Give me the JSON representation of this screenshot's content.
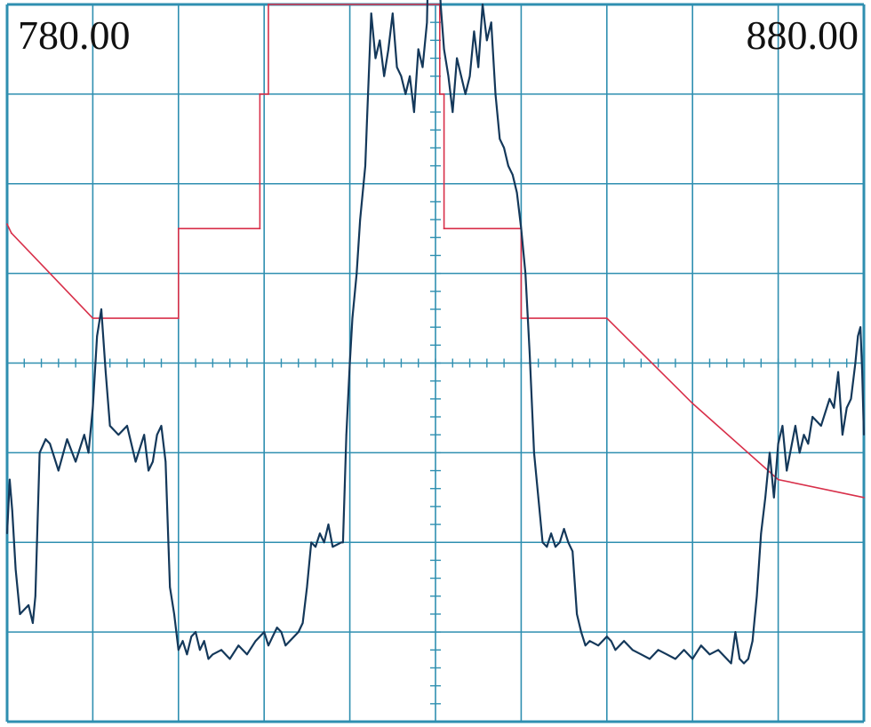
{
  "chart_data": {
    "type": "line",
    "start_label": "780.00",
    "stop_label": "880.00",
    "x_range": [
      780,
      880
    ],
    "y_divisions": 8,
    "x_divisions": 10,
    "grid": true,
    "colors": {
      "grid": "#2f8fb0",
      "trace": "#14385a",
      "mask": "#d8304a",
      "background": "#ffffff"
    },
    "series": [
      {
        "role": "mask",
        "points": [
          [
            780.0,
            5.55
          ],
          [
            780.5,
            5.45
          ],
          [
            785,
            5.0
          ],
          [
            790,
            4.5
          ],
          [
            800,
            4.5
          ],
          [
            800,
            5.5
          ],
          [
            809.5,
            5.5
          ],
          [
            809.5,
            7.0
          ],
          [
            810.5,
            7.0
          ],
          [
            810.5,
            8.0
          ],
          [
            830.5,
            8.0
          ],
          [
            830.5,
            7.0
          ],
          [
            831,
            7.0
          ],
          [
            831,
            5.5
          ],
          [
            840,
            5.5
          ],
          [
            840,
            4.5
          ],
          [
            850,
            4.5
          ],
          [
            860,
            3.55
          ],
          [
            870,
            2.7
          ],
          [
            880,
            2.5
          ]
        ]
      },
      {
        "role": "trace",
        "points": [
          [
            780.0,
            2.1
          ],
          [
            780.3,
            2.7
          ],
          [
            780.6,
            2.35
          ],
          [
            781,
            1.7
          ],
          [
            781.5,
            1.2
          ],
          [
            782,
            1.25
          ],
          [
            782.5,
            1.3
          ],
          [
            783,
            1.1
          ],
          [
            783.3,
            1.4
          ],
          [
            783.8,
            3.0
          ],
          [
            784.5,
            3.15
          ],
          [
            785,
            3.1
          ],
          [
            786,
            2.8
          ],
          [
            787,
            3.15
          ],
          [
            788,
            2.9
          ],
          [
            789,
            3.2
          ],
          [
            789.5,
            3.0
          ],
          [
            790,
            3.5
          ],
          [
            790.5,
            4.3
          ],
          [
            791,
            4.6
          ],
          [
            791.5,
            3.9
          ],
          [
            792,
            3.3
          ],
          [
            793,
            3.2
          ],
          [
            794,
            3.3
          ],
          [
            795,
            2.9
          ],
          [
            796,
            3.2
          ],
          [
            796.5,
            2.8
          ],
          [
            797,
            2.9
          ],
          [
            797.5,
            3.2
          ],
          [
            798,
            3.3
          ],
          [
            798.5,
            2.9
          ],
          [
            799,
            1.5
          ],
          [
            799.5,
            1.2
          ],
          [
            800,
            0.8
          ],
          [
            800.5,
            0.9
          ],
          [
            801,
            0.75
          ],
          [
            801.5,
            0.95
          ],
          [
            802,
            1.0
          ],
          [
            802.5,
            0.8
          ],
          [
            803,
            0.9
          ],
          [
            803.5,
            0.7
          ],
          [
            804,
            0.75
          ],
          [
            805,
            0.8
          ],
          [
            806,
            0.7
          ],
          [
            807,
            0.85
          ],
          [
            808,
            0.75
          ],
          [
            809,
            0.9
          ],
          [
            810,
            1.0
          ],
          [
            810.5,
            0.85
          ],
          [
            811,
            0.95
          ],
          [
            811.5,
            1.05
          ],
          [
            812,
            1.0
          ],
          [
            812.5,
            0.85
          ],
          [
            813,
            0.9
          ],
          [
            814,
            1.0
          ],
          [
            814.5,
            1.1
          ],
          [
            815,
            1.5
          ],
          [
            815.5,
            2.0
          ],
          [
            816,
            1.95
          ],
          [
            816.5,
            2.1
          ],
          [
            817,
            2.0
          ],
          [
            817.5,
            2.2
          ],
          [
            818,
            1.95
          ],
          [
            819,
            2.0
          ],
          [
            819.2,
            2.0
          ],
          [
            819.6,
            3.2
          ],
          [
            820,
            4.0
          ],
          [
            820.3,
            4.5
          ],
          [
            820.8,
            5.0
          ],
          [
            821.2,
            5.6
          ],
          [
            821.8,
            6.2
          ],
          [
            822,
            6.7
          ],
          [
            822.5,
            7.9
          ],
          [
            823,
            7.4
          ],
          [
            823.5,
            7.6
          ],
          [
            824,
            7.2
          ],
          [
            824.5,
            7.5
          ],
          [
            825,
            7.9
          ],
          [
            825.5,
            7.3
          ],
          [
            826,
            7.2
          ],
          [
            826.5,
            7.0
          ],
          [
            827,
            7.2
          ],
          [
            827.5,
            6.8
          ],
          [
            828,
            7.5
          ],
          [
            828.5,
            7.3
          ],
          [
            829,
            7.8
          ],
          [
            829.2,
            8.7
          ],
          [
            829.5,
            9.3
          ],
          [
            829.7,
            11.5
          ],
          [
            829.8,
            12.6
          ],
          [
            830,
            8.5
          ],
          [
            830.2,
            9.8
          ],
          [
            830.4,
            8.4
          ],
          [
            830.6,
            8.0
          ],
          [
            831,
            7.5
          ],
          [
            831.5,
            7.2
          ],
          [
            832,
            6.8
          ],
          [
            832.5,
            7.4
          ],
          [
            833,
            7.2
          ],
          [
            833.5,
            7.0
          ],
          [
            834,
            7.2
          ],
          [
            834.5,
            7.7
          ],
          [
            835,
            7.3
          ],
          [
            835.5,
            8.0
          ],
          [
            836,
            7.6
          ],
          [
            836.5,
            7.8
          ],
          [
            837,
            7.0
          ],
          [
            837.5,
            6.5
          ],
          [
            838,
            6.4
          ],
          [
            838.5,
            6.2
          ],
          [
            839,
            6.1
          ],
          [
            839.5,
            5.9
          ],
          [
            840,
            5.5
          ],
          [
            840.5,
            5.0
          ],
          [
            841,
            4.1
          ],
          [
            841.5,
            3.0
          ],
          [
            842,
            2.5
          ],
          [
            842.5,
            2.0
          ],
          [
            843,
            1.95
          ],
          [
            843.5,
            2.1
          ],
          [
            844,
            1.95
          ],
          [
            844.5,
            2.0
          ],
          [
            845,
            2.15
          ],
          [
            845.5,
            2.0
          ],
          [
            846,
            1.9
          ],
          [
            846.5,
            1.2
          ],
          [
            847,
            1.0
          ],
          [
            847.5,
            0.85
          ],
          [
            848,
            0.9
          ],
          [
            849,
            0.85
          ],
          [
            850,
            0.95
          ],
          [
            850.5,
            0.9
          ],
          [
            851,
            0.8
          ],
          [
            852,
            0.9
          ],
          [
            853,
            0.8
          ],
          [
            854,
            0.75
          ],
          [
            855,
            0.7
          ],
          [
            856,
            0.8
          ],
          [
            857,
            0.75
          ],
          [
            858,
            0.7
          ],
          [
            859,
            0.8
          ],
          [
            860,
            0.7
          ],
          [
            861,
            0.85
          ],
          [
            862,
            0.75
          ],
          [
            863,
            0.8
          ],
          [
            864,
            0.7
          ],
          [
            864.5,
            0.65
          ],
          [
            865,
            1.0
          ],
          [
            865.5,
            0.7
          ],
          [
            866,
            0.65
          ],
          [
            866.5,
            0.7
          ],
          [
            867,
            0.9
          ],
          [
            867.5,
            1.4
          ],
          [
            868,
            2.1
          ],
          [
            868.5,
            2.5
          ],
          [
            869,
            3.0
          ],
          [
            869.5,
            2.5
          ],
          [
            870,
            3.1
          ],
          [
            870.5,
            3.3
          ],
          [
            871,
            2.8
          ],
          [
            872,
            3.3
          ],
          [
            872.5,
            3.0
          ],
          [
            873,
            3.2
          ],
          [
            873.5,
            3.1
          ],
          [
            874,
            3.4
          ],
          [
            875,
            3.3
          ],
          [
            876,
            3.6
          ],
          [
            876.5,
            3.5
          ],
          [
            877,
            3.9
          ],
          [
            877.5,
            3.2
          ],
          [
            878,
            3.5
          ],
          [
            878.5,
            3.6
          ],
          [
            879,
            4.0
          ],
          [
            879.3,
            4.3
          ],
          [
            879.6,
            4.4
          ],
          [
            879.8,
            3.9
          ],
          [
            880,
            3.2
          ]
        ]
      }
    ]
  }
}
